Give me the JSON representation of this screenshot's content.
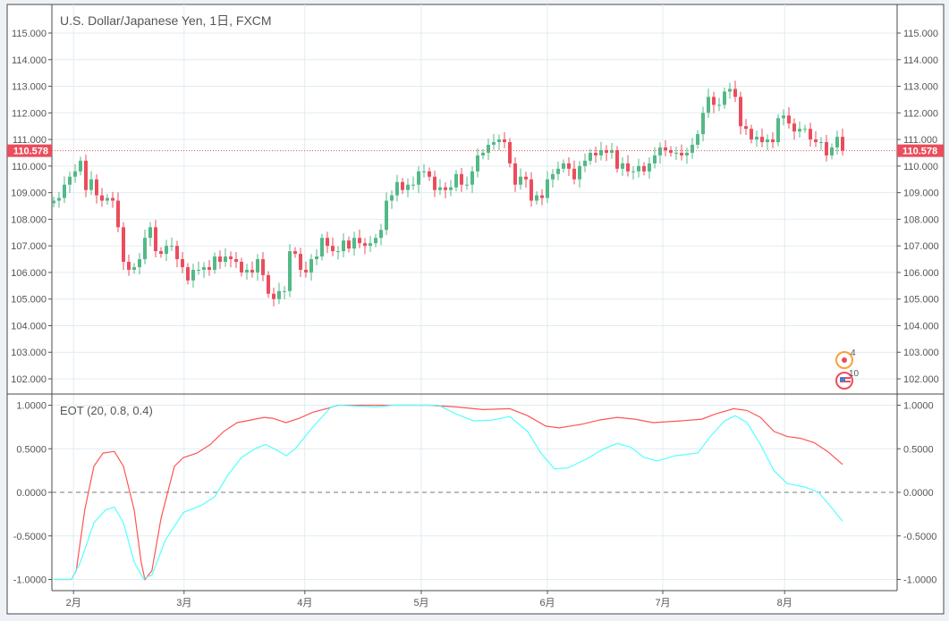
{
  "header": {
    "title": "U.S. Dollar/Japanese Yen, 1日, FXCM"
  },
  "indicator": {
    "title": "EOT (20, 0.8, 0.4)"
  },
  "events": [
    {
      "icon": "japan-flag-icon",
      "count": "4"
    },
    {
      "icon": "us-flag-icon",
      "count": "10"
    }
  ],
  "colors": {
    "up": "#53b987",
    "down": "#eb4d5c",
    "eot_fast": "#ff5555",
    "eot_slow": "#55ffff",
    "last_price": "#eb4d5c"
  },
  "chart_data": [
    {
      "type": "candlestick",
      "title": "U.S. Dollar/Japanese Yen, 1日, FXCM",
      "first_open": 108.6,
      "closes": [
        108.7,
        108.8,
        109.3,
        109.6,
        109.8,
        110.2,
        109.1,
        109.5,
        108.9,
        108.7,
        108.8,
        108.7,
        107.7,
        106.4,
        106.1,
        106.2,
        106.5,
        107.3,
        107.7,
        106.8,
        106.7,
        107.0,
        107.0,
        106.5,
        106.2,
        105.7,
        106.1,
        106.1,
        106.2,
        106.1,
        106.6,
        106.4,
        106.6,
        106.5,
        106.4,
        106.0,
        106.1,
        106.0,
        106.5,
        105.9,
        105.2,
        105.0,
        105.3,
        105.3,
        106.8,
        106.7,
        106.1,
        106.0,
        106.5,
        106.6,
        107.3,
        107.0,
        106.8,
        106.8,
        107.2,
        106.9,
        107.3,
        107.1,
        107.0,
        107.1,
        107.3,
        107.6,
        108.7,
        108.9,
        109.4,
        109.1,
        109.3,
        109.3,
        109.8,
        109.8,
        109.6,
        109.1,
        109.2,
        109.1,
        109.2,
        109.7,
        109.3,
        109.3,
        109.8,
        110.4,
        110.5,
        110.8,
        110.9,
        111.0,
        110.9,
        110.1,
        109.3,
        109.6,
        109.5,
        108.7,
        108.9,
        108.8,
        109.5,
        109.7,
        109.9,
        110.1,
        109.9,
        109.5,
        110.0,
        110.2,
        110.5,
        110.4,
        110.6,
        110.5,
        110.6,
        109.9,
        110.1,
        109.8,
        109.8,
        110.0,
        109.8,
        110.1,
        110.4,
        110.7,
        110.6,
        110.5,
        110.5,
        110.4,
        110.5,
        110.8,
        111.2,
        112.0,
        112.6,
        112.3,
        112.3,
        112.8,
        112.9,
        112.6,
        111.5,
        111.4,
        111.0,
        111.1,
        110.9,
        111.0,
        110.9,
        111.8,
        111.9,
        111.6,
        111.3,
        111.4,
        111.4,
        111.0,
        110.9,
        110.9,
        110.4,
        110.7,
        111.1,
        110.578
      ],
      "last_price": "110.578",
      "ylim": [
        101.6,
        116.1
      ],
      "yticks": [
        "115.000",
        "114.000",
        "113.000",
        "112.000",
        "111.000",
        "110.000",
        "109.000",
        "108.000",
        "107.000",
        "106.000",
        "105.000",
        "104.000",
        "103.000",
        "102.000"
      ],
      "ytick_values": [
        115,
        114,
        113,
        112,
        111,
        110,
        109,
        108,
        107,
        106,
        105,
        104,
        103,
        102
      ]
    },
    {
      "type": "line",
      "title": "EOT (20, 0.8, 0.4)",
      "ylim": [
        -1.07,
        1.07
      ],
      "yticks": [
        "1.0000",
        "0.5000",
        "0.0000",
        "-0.5000",
        "-1.0000"
      ],
      "ytick_values": [
        1,
        0.5,
        0,
        -0.5,
        -1
      ],
      "series": [
        {
          "name": "fast",
          "color": "#ff5555",
          "points": [
            [
              0,
              -1
            ],
            [
              3.3,
              -1
            ],
            [
              4.2,
              -0.9
            ],
            [
              5.8,
              -0.2
            ],
            [
              7.5,
              0.3
            ],
            [
              9.2,
              0.45
            ],
            [
              11.3,
              0.47
            ],
            [
              13,
              0.3
            ],
            [
              15,
              -0.2
            ],
            [
              16.3,
              -0.8
            ],
            [
              17,
              -1
            ],
            [
              18.3,
              -0.9
            ],
            [
              20,
              -0.3
            ],
            [
              22.5,
              0.3
            ],
            [
              24.2,
              0.4
            ],
            [
              26.7,
              0.45
            ],
            [
              29.2,
              0.55
            ],
            [
              31.7,
              0.7
            ],
            [
              34.2,
              0.8
            ],
            [
              36.7,
              0.83
            ],
            [
              39.2,
              0.86
            ],
            [
              40.8,
              0.85
            ],
            [
              43.3,
              0.8
            ],
            [
              45.8,
              0.85
            ],
            [
              48.3,
              0.92
            ],
            [
              50.8,
              0.96
            ],
            [
              53,
              1
            ],
            [
              60,
              1
            ],
            [
              70,
              1
            ],
            [
              75,
              0.98
            ],
            [
              80,
              0.95
            ],
            [
              85,
              0.96
            ],
            [
              88.3,
              0.88
            ],
            [
              91.7,
              0.76
            ],
            [
              94.2,
              0.74
            ],
            [
              98.3,
              0.78
            ],
            [
              101.7,
              0.83
            ],
            [
              105,
              0.86
            ],
            [
              108.3,
              0.84
            ],
            [
              111.7,
              0.8
            ],
            [
              116.7,
              0.82
            ],
            [
              120.8,
              0.84
            ],
            [
              123.3,
              0.9
            ],
            [
              126.7,
              0.96
            ],
            [
              129.2,
              0.94
            ],
            [
              131.7,
              0.86
            ],
            [
              134.2,
              0.7
            ],
            [
              136.7,
              0.64
            ],
            [
              139.2,
              0.62
            ],
            [
              141.7,
              0.57
            ],
            [
              144.2,
              0.47
            ],
            [
              147,
              0.32
            ]
          ]
        },
        {
          "name": "slow",
          "color": "#55ffff",
          "points": [
            [
              0,
              -1
            ],
            [
              3.3,
              -1
            ],
            [
              5,
              -0.8
            ],
            [
              7.5,
              -0.35
            ],
            [
              9.7,
              -0.2
            ],
            [
              11.3,
              -0.17
            ],
            [
              13,
              -0.35
            ],
            [
              15,
              -0.8
            ],
            [
              16.7,
              -0.99
            ],
            [
              18.3,
              -0.95
            ],
            [
              20.8,
              -0.55
            ],
            [
              24.2,
              -0.23
            ],
            [
              27.5,
              -0.15
            ],
            [
              30,
              -0.05
            ],
            [
              32.5,
              0.2
            ],
            [
              35,
              0.4
            ],
            [
              37.5,
              0.5
            ],
            [
              39.5,
              0.55
            ],
            [
              41.7,
              0.48
            ],
            [
              43.3,
              0.42
            ],
            [
              45,
              0.5
            ],
            [
              48.3,
              0.75
            ],
            [
              51.7,
              0.98
            ],
            [
              53.3,
              1
            ],
            [
              60,
              0.98
            ],
            [
              63.3,
              1
            ],
            [
              71.7,
              1
            ],
            [
              75,
              0.9
            ],
            [
              78.3,
              0.82
            ],
            [
              81.7,
              0.83
            ],
            [
              85,
              0.87
            ],
            [
              88.3,
              0.7
            ],
            [
              90.8,
              0.45
            ],
            [
              93.3,
              0.27
            ],
            [
              95.8,
              0.28
            ],
            [
              99.2,
              0.38
            ],
            [
              102.5,
              0.5
            ],
            [
              105,
              0.56
            ],
            [
              107.5,
              0.52
            ],
            [
              110,
              0.4
            ],
            [
              112.5,
              0.36
            ],
            [
              115.8,
              0.42
            ],
            [
              120,
              0.45
            ],
            [
              122.5,
              0.65
            ],
            [
              125,
              0.82
            ],
            [
              127,
              0.88
            ],
            [
              129.2,
              0.8
            ],
            [
              131.7,
              0.55
            ],
            [
              134.2,
              0.25
            ],
            [
              136.7,
              0.1
            ],
            [
              140,
              0.06
            ],
            [
              142.5,
              0
            ],
            [
              144.2,
              -0.12
            ],
            [
              147,
              -0.33
            ]
          ]
        }
      ]
    }
  ],
  "xaxis": {
    "labels": [
      "2月",
      "3月",
      "4月",
      "5月",
      "6月",
      "7月",
      "8月"
    ],
    "bar_index": [
      3.7,
      24.3,
      46.8,
      68.5,
      92,
      113.5,
      136.2
    ]
  }
}
